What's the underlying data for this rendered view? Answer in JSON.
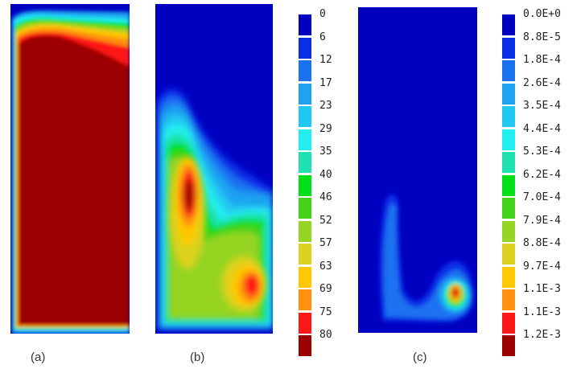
{
  "colors": [
    "#0000c0",
    "#0a2ee8",
    "#1a72f0",
    "#1ea3f0",
    "#21c8f0",
    "#22eef0",
    "#1fe2b0",
    "#00e01a",
    "#44d21d",
    "#96d424",
    "#dcd21f",
    "#ffc800",
    "#ff9010",
    "#ff1818",
    "#9c0000"
  ],
  "panels": [
    {
      "caption": "(a)"
    },
    {
      "caption": "(b)"
    },
    {
      "caption": "(c)"
    }
  ],
  "colorbar_b": {
    "ticks": [
      "0",
      "6",
      "12",
      "17",
      "23",
      "29",
      "35",
      "40",
      "46",
      "52",
      "57",
      "63",
      "69",
      "75",
      "80"
    ]
  },
  "colorbar_c": {
    "ticks": [
      "0.0E+0",
      "8.8E-5",
      "1.8E-4",
      "2.6E-4",
      "3.5E-4",
      "4.4E-4",
      "5.3E-4",
      "6.2E-4",
      "7.0E-4",
      "7.9E-4",
      "8.8E-4",
      "9.7E-4",
      "1.1E-3",
      "1.1E-3",
      "1.2E-3"
    ]
  }
}
